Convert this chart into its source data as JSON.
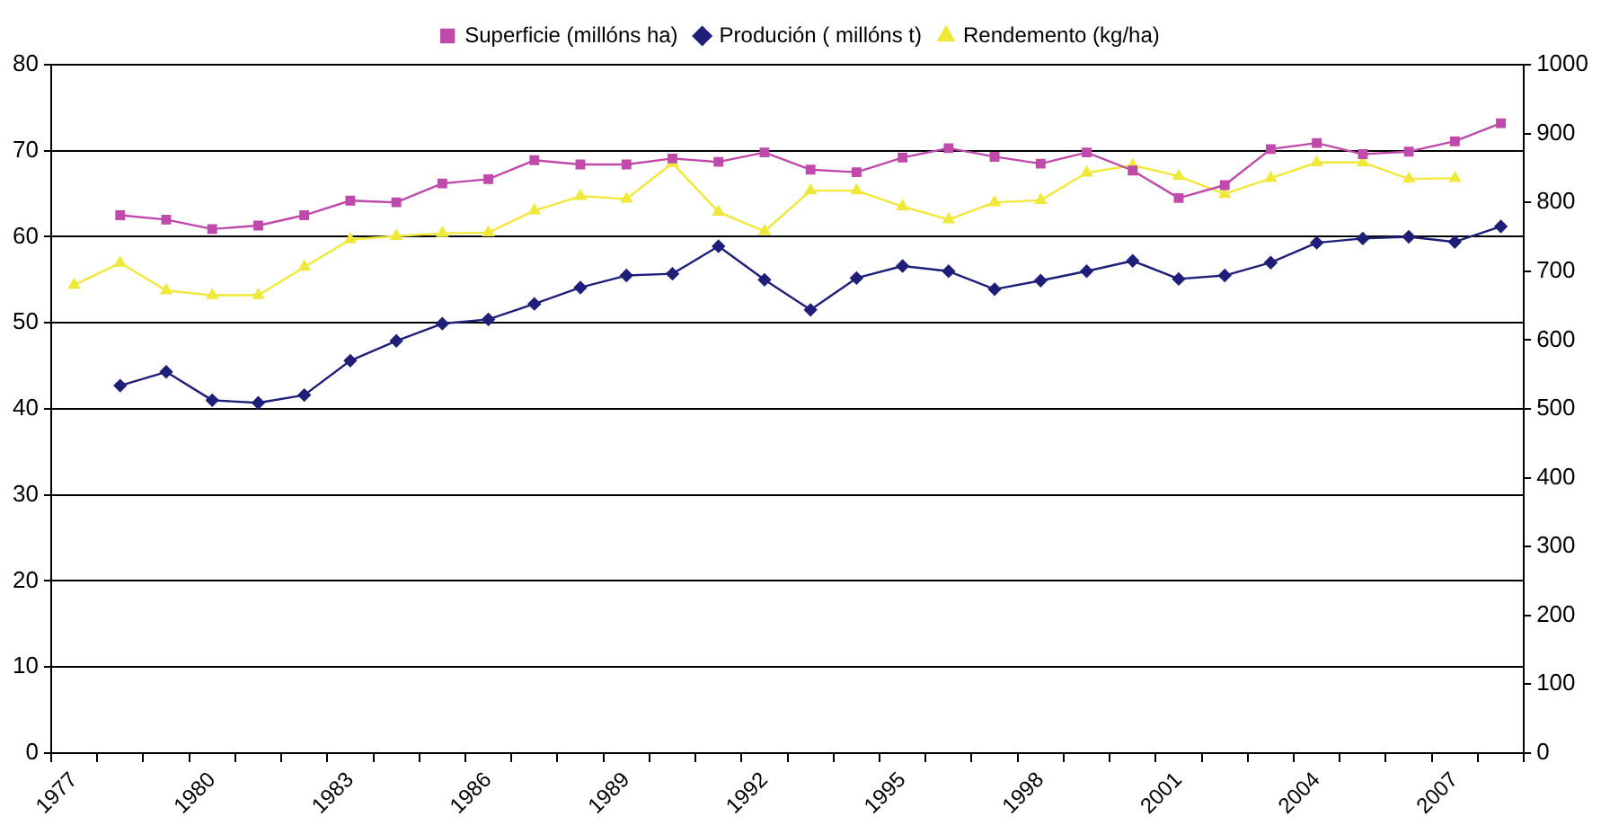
{
  "chart_data": {
    "type": "line",
    "categories": [
      "1977",
      null,
      null,
      "1980",
      null,
      null,
      "1983",
      null,
      null,
      "1986",
      null,
      null,
      "1989",
      null,
      null,
      "1992",
      null,
      null,
      "1995",
      null,
      null,
      "1998",
      null,
      null,
      "2001",
      null,
      null,
      "2004",
      null,
      null,
      "2007",
      null
    ],
    "series": [
      {
        "name": "Superficie (millóns ha)",
        "color": "#c04aab",
        "marker": "square",
        "values": [
          null,
          62.5,
          62.0,
          60.9,
          61.3,
          62.5,
          64.2,
          64.0,
          66.2,
          66.7,
          68.9,
          68.4,
          68.4,
          69.1,
          68.7,
          69.8,
          67.8,
          67.5,
          69.2,
          70.3,
          69.3,
          68.5,
          69.8,
          67.7,
          64.5,
          66.0,
          70.2,
          70.9,
          69.6,
          69.9,
          71.1,
          73.2
        ]
      },
      {
        "name": "Produción ( millóns t)",
        "color": "#1f1f7a",
        "marker": "diamond",
        "values": [
          null,
          42.7,
          44.3,
          41.0,
          40.7,
          41.6,
          45.6,
          47.9,
          49.9,
          50.4,
          52.2,
          54.1,
          55.5,
          55.7,
          58.9,
          55.0,
          51.5,
          55.2,
          56.6,
          56.0,
          53.9,
          54.9,
          56.0,
          57.2,
          55.1,
          55.5,
          57.0,
          59.3,
          59.8,
          60.0,
          59.4,
          61.2
        ]
      },
      {
        "name": "Rendemento (kg/ha)",
        "color": "#f0e83a",
        "marker": "triangle",
        "axis": "y2",
        "values": [
          680,
          712,
          672,
          665,
          665,
          706,
          746,
          751,
          755,
          756,
          788,
          809,
          805,
          857,
          786,
          758,
          817,
          817,
          794,
          775,
          800,
          803,
          843,
          854,
          838,
          812,
          835,
          858,
          858,
          834,
          835,
          null
        ]
      }
    ],
    "ylim": [
      0,
      80
    ],
    "yticks": [
      0,
      10,
      20,
      30,
      40,
      50,
      60,
      70,
      80
    ],
    "y2lim": [
      0,
      1000
    ],
    "y2ticks": [
      0,
      100,
      200,
      300,
      400,
      500,
      600,
      700,
      800,
      900,
      1000
    ],
    "grid": "y",
    "legend": "top",
    "line_style": "solid"
  }
}
